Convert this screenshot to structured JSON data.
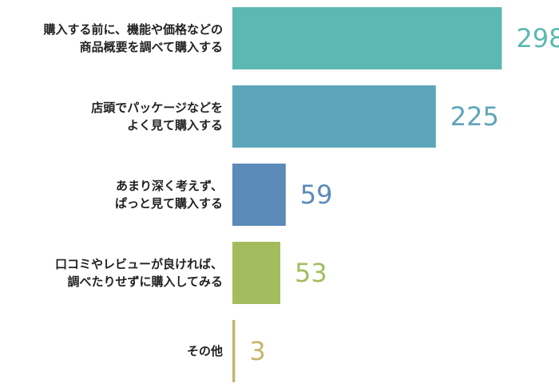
{
  "chart_data": {
    "type": "bar",
    "orientation": "horizontal",
    "categories": [
      "購入する前に、機能や価格などの\n商品概要を調べて購入する",
      "店頭でパッケージなどを\nよく見て購入する",
      "あまり深く考えず、\nぱっと見て購入する",
      "口コミやレビューが良ければ、\n調べたりせずに購入してみる",
      "その他"
    ],
    "values": [
      298,
      225,
      59,
      53,
      3
    ],
    "xlim": [
      0,
      340
    ],
    "colors": [
      "#5cb8b2",
      "#5da5b9",
      "#5b8ab8",
      "#a3bd5e",
      "#c4b56b"
    ],
    "title": "",
    "xlabel": "",
    "ylabel": "",
    "grid": false,
    "legend": "none"
  }
}
